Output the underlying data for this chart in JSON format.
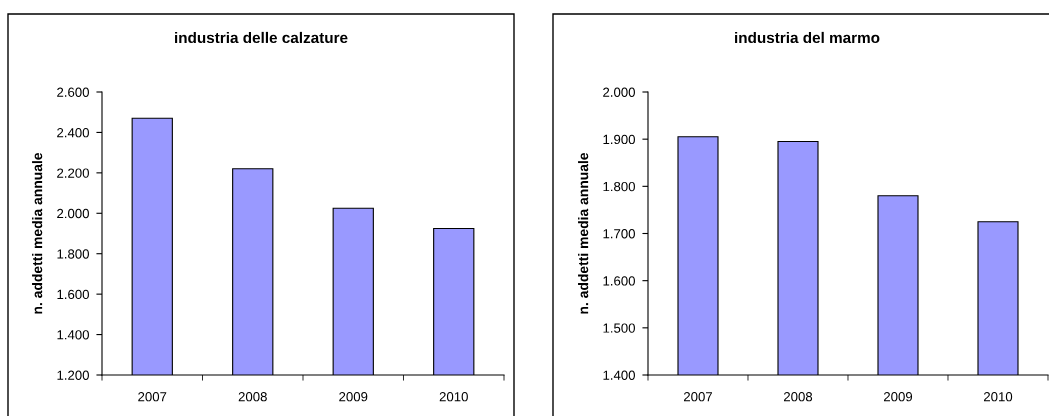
{
  "chart_data": [
    {
      "type": "bar",
      "title": "industria delle calzature",
      "ylabel": "n. addetti media annuale",
      "categories": [
        "2007",
        "2008",
        "2009",
        "2010"
      ],
      "values": [
        2470,
        2220,
        2025,
        1925
      ],
      "color": "#9999ff",
      "ylim": [
        1200,
        2600
      ],
      "yticks": [
        {
          "value": 1200,
          "label": "1.200"
        },
        {
          "value": 1400,
          "label": "1.400"
        },
        {
          "value": 1600,
          "label": "1.600"
        },
        {
          "value": 1800,
          "label": "1.800"
        },
        {
          "value": 2000,
          "label": "2.000"
        },
        {
          "value": 2200,
          "label": "2.200"
        },
        {
          "value": 2400,
          "label": "2.400"
        },
        {
          "value": 2600,
          "label": "2.600"
        }
      ]
    },
    {
      "type": "bar",
      "title": "industria del marmo",
      "ylabel": "n. addetti media annuale",
      "categories": [
        "2007",
        "2008",
        "2009",
        "2010"
      ],
      "values": [
        1905,
        1895,
        1780,
        1725
      ],
      "color": "#9999ff",
      "ylim": [
        1400,
        2000
      ],
      "yticks": [
        {
          "value": 1400,
          "label": "1.400"
        },
        {
          "value": 1500,
          "label": "1.500"
        },
        {
          "value": 1600,
          "label": "1.600"
        },
        {
          "value": 1700,
          "label": "1.700"
        },
        {
          "value": 1800,
          "label": "1.800"
        },
        {
          "value": 1900,
          "label": "1.900"
        },
        {
          "value": 2000,
          "label": "2.000"
        }
      ]
    }
  ]
}
